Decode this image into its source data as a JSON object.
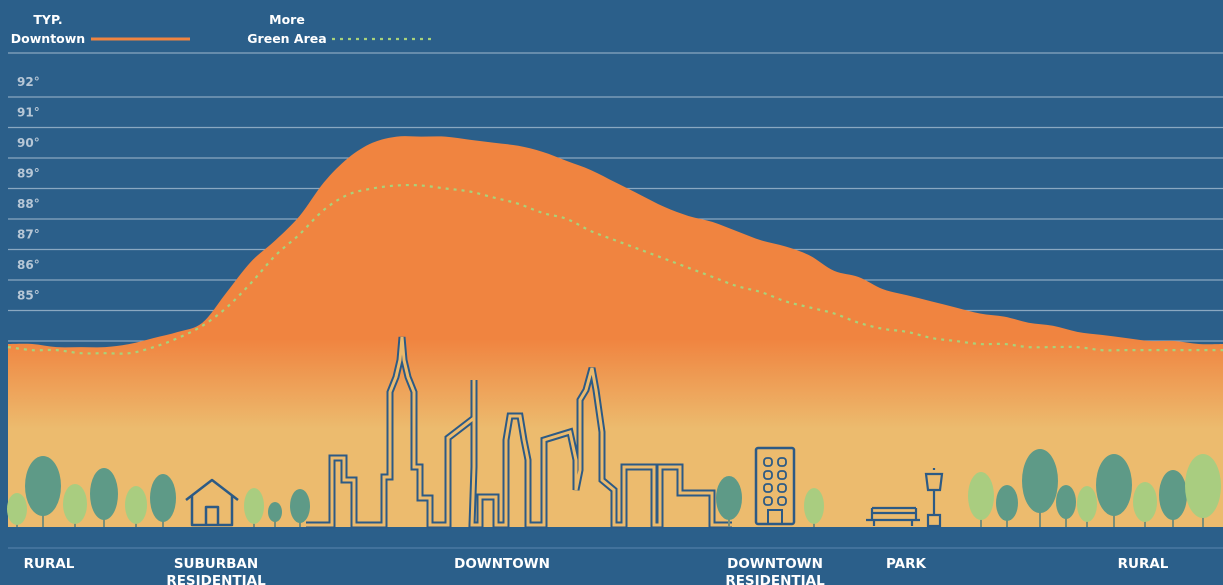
{
  "colors": {
    "background": "#2b5f8a",
    "downtown_fill": "#f08440",
    "downtown_fill_bottom": "#ecbb6e",
    "green_line": "#a9d27a",
    "skyline": "#2c5a85",
    "gridline": "#d9e4ee",
    "tree_dark": "#5e9a87",
    "tree_light": "#a9cd80"
  },
  "legend": {
    "typ_line1": "TYP.",
    "typ_line2": "Downtown",
    "green_line1": "More",
    "green_line2": "Green Area"
  },
  "chart_data": {
    "type": "area",
    "title": "",
    "xlabel": "",
    "ylabel": "",
    "y_tick_labels": [
      "92°",
      "91°",
      "90°",
      "89°",
      "88°",
      "87°",
      "86°",
      "85°"
    ],
    "ylim": [
      84,
      92
    ],
    "grid": true,
    "legend_position": "top-left",
    "categories": [
      "RURAL",
      "SUBURBAN RESIDENTIAL",
      "DOWNTOWN",
      "DOWNTOWN RESIDENTIAL",
      "PARK",
      "RURAL"
    ],
    "x": [
      0,
      2,
      4,
      6,
      8,
      10,
      12,
      14,
      16,
      18,
      20,
      22,
      24,
      26,
      28,
      30,
      32,
      34,
      36,
      38,
      40,
      42,
      44,
      46,
      48,
      50,
      52,
      54,
      56,
      58,
      60,
      62,
      64,
      66,
      68,
      70,
      72,
      74,
      76,
      78,
      80,
      82,
      84,
      86,
      88,
      90,
      92,
      94,
      96,
      98,
      100
    ],
    "series": [
      {
        "name": "TYP. Downtown",
        "style": "solid-fill",
        "values": [
          83.9,
          83.9,
          83.8,
          83.8,
          83.8,
          83.9,
          84.1,
          84.3,
          84.6,
          85.6,
          86.6,
          87.3,
          88.1,
          89.2,
          90.0,
          90.5,
          90.7,
          90.7,
          90.7,
          90.6,
          90.5,
          90.4,
          90.2,
          89.9,
          89.6,
          89.2,
          88.8,
          88.4,
          88.1,
          87.9,
          87.6,
          87.3,
          87.1,
          86.8,
          86.3,
          86.1,
          85.7,
          85.5,
          85.3,
          85.1,
          84.9,
          84.8,
          84.6,
          84.5,
          84.3,
          84.2,
          84.1,
          84.0,
          84.0,
          83.9,
          83.9
        ]
      },
      {
        "name": "More Green Area",
        "style": "dashed",
        "values": [
          83.8,
          83.7,
          83.7,
          83.6,
          83.6,
          83.6,
          83.8,
          84.1,
          84.5,
          85.1,
          85.9,
          86.8,
          87.5,
          88.3,
          88.8,
          89.0,
          89.1,
          89.1,
          89.0,
          88.9,
          88.7,
          88.5,
          88.2,
          88.0,
          87.6,
          87.3,
          87.0,
          86.7,
          86.4,
          86.1,
          85.8,
          85.6,
          85.3,
          85.1,
          84.9,
          84.6,
          84.4,
          84.3,
          84.1,
          84.0,
          83.9,
          83.9,
          83.8,
          83.8,
          83.8,
          83.7,
          83.7,
          83.7,
          83.7,
          83.7,
          83.7
        ]
      }
    ]
  }
}
